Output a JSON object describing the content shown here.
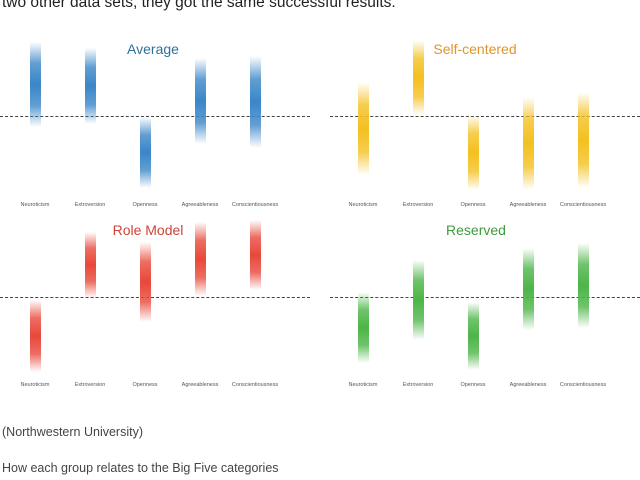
{
  "article": {
    "intro_text": "two other data sets, they got the same successful results.",
    "credit": "(Northwestern University)",
    "caption": "How each group relates to the Big Five categories"
  },
  "figure": {
    "categories": [
      "Neuroticism",
      "Extroversion",
      "Openness",
      "Agreeableness",
      "Conscientiousness"
    ],
    "panels": [
      {
        "title": "Average",
        "color": "#3a86c8",
        "title_color": "#2f6f9a"
      },
      {
        "title": "Self-centered",
        "color": "#f4c020",
        "title_color": "#e0932a"
      },
      {
        "title": "Role Model",
        "color": "#e8483a",
        "title_color": "#d0433a"
      },
      {
        "title": "Reserved",
        "color": "#4cb548",
        "title_color": "#3f9a3c"
      }
    ]
  }
}
